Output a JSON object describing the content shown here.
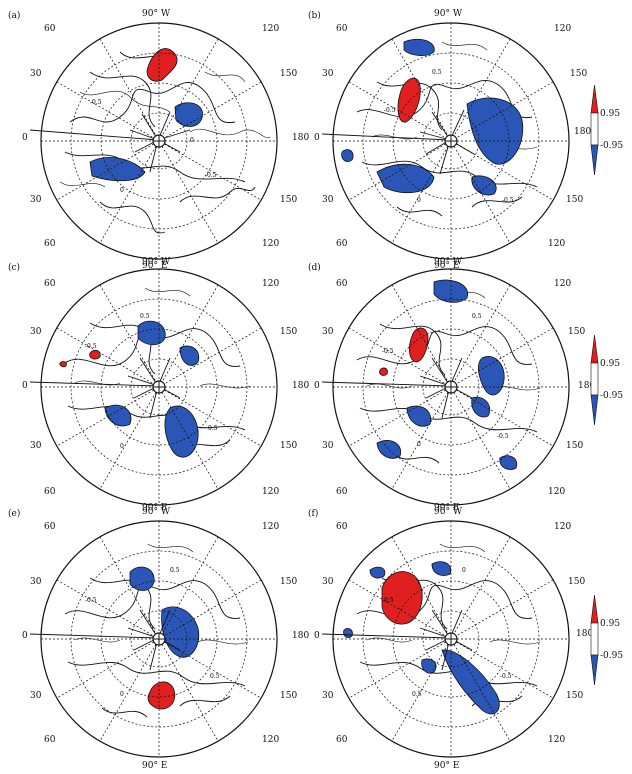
{
  "colors": {
    "positive": "#e02020",
    "negative": "#2a56b8",
    "line": "#111111"
  },
  "lon_labels": {
    "top": "90° W",
    "bottom": "90° E",
    "left": "0",
    "right": "180",
    "upper_left": "60",
    "upper_right": "120",
    "mid_left_top": "30",
    "mid_right_top": "150",
    "mid_left_bottom": "30",
    "mid_right_bottom": "150",
    "lower_left": "60",
    "lower_right": "120"
  },
  "colorbar": {
    "upper": "0.95",
    "lower": "-0.95"
  },
  "panels": [
    {
      "id": "a",
      "label": "(a)",
      "contour_labels": [
        "-0.5",
        "0",
        "0",
        "-0.5"
      ]
    },
    {
      "id": "b",
      "label": "(b)",
      "contour_labels": [
        "-0.5",
        "0.5",
        "0",
        "-0.5"
      ]
    },
    {
      "id": "c",
      "label": "(c)",
      "contour_labels": [
        "-0.5",
        "0.5",
        "0",
        "0.5"
      ]
    },
    {
      "id": "d",
      "label": "(d)",
      "contour_labels": [
        "-0.5",
        "0.5",
        "0",
        "-0.5"
      ]
    },
    {
      "id": "e",
      "label": "(e)",
      "contour_labels": [
        "-0.5",
        "0.5",
        "0",
        "0.5"
      ]
    },
    {
      "id": "f",
      "label": "(f)",
      "contour_labels": [
        "-0.5",
        "0",
        "0.5",
        "-0.5"
      ]
    }
  ]
}
